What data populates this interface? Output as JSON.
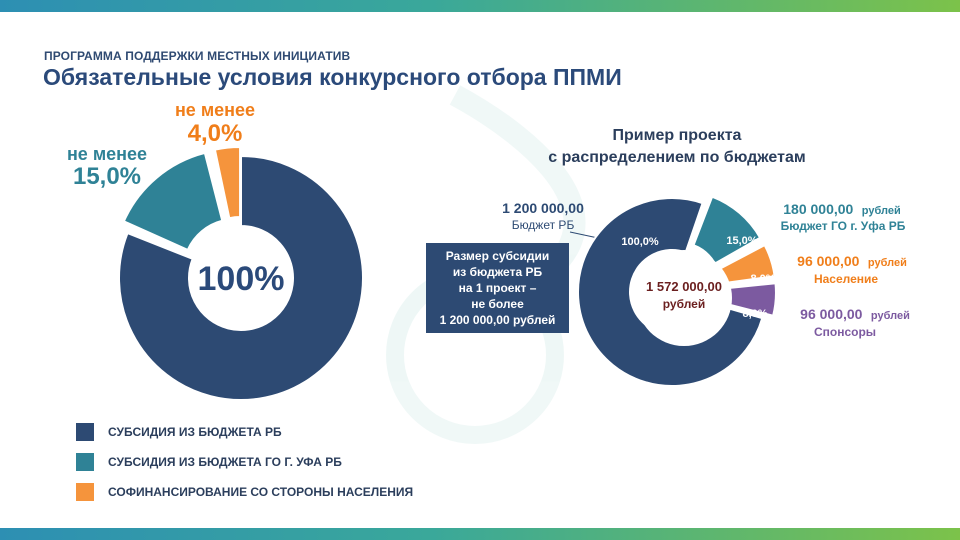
{
  "header": {
    "subtitle": "ПРОГРАММА ПОДДЕРЖКИ МЕСТНЫХ ИНИЦИАТИВ",
    "title": "Обязательные условия конкурсного отбора ППМИ"
  },
  "colors": {
    "rb": "#2d4a73",
    "go": "#2f8296",
    "population": "#f5943c",
    "sponsors": "#7c5aa0",
    "bar_gradient_start": "#2d8fb3",
    "bar_gradient_end": "#7cc24a"
  },
  "chart_data": [
    {
      "type": "pie",
      "variant": "donut",
      "center_label": "100%",
      "slices": [
        {
          "label": "СУБСИДИЯ ИЗ БЮДЖЕТА РБ",
          "value": 81.0,
          "color": "#2d4a73",
          "data_label": ""
        },
        {
          "label": "СУБСИДИЯ ИЗ БЮДЖЕТА ГО Г. УФА РБ",
          "value": 15.0,
          "color": "#2f8296",
          "data_label_prefix": "не менее",
          "data_label": "15,0%"
        },
        {
          "label": "СОФИНАНСИРОВАНИЕ СО СТОРОНЫ НАСЕЛЕНИЯ",
          "value": 4.0,
          "color": "#f5943c",
          "data_label_prefix": "не менее",
          "data_label": "4,0%"
        }
      ],
      "legend": [
        {
          "label": "СУБСИДИЯ ИЗ БЮДЖЕТА РБ",
          "color": "#2d4a73"
        },
        {
          "label": "СУБСИДИЯ ИЗ БЮДЖЕТА ГО Г. УФА РБ",
          "color": "#2f8296"
        },
        {
          "label": "СОФИНАНСИРОВАНИЕ СО СТОРОНЫ НАСЕЛЕНИЯ",
          "color": "#f5943c"
        }
      ],
      "legend_position": "bottom-left"
    },
    {
      "type": "pie",
      "variant": "donut",
      "title_line1": "Пример проекта",
      "title_line2": "с распределением по бюджетам",
      "center_value": "1 572 000,00",
      "center_unit": "рублей",
      "slices": [
        {
          "name": "Бюджет РБ",
          "amount": "1 200 000,00",
          "unit": "",
          "value": 1200000,
          "pct_label": "100,0%",
          "color": "#2d4a73"
        },
        {
          "name": "Бюджет ГО г. Уфа РБ",
          "amount": "180 000,00",
          "unit": "рублей",
          "value": 180000,
          "pct_label": "15,0%",
          "color": "#2f8296"
        },
        {
          "name": "Население",
          "amount": "96 000,00",
          "unit": "рублей",
          "value": 96000,
          "pct_label": "8,0%",
          "color": "#f5943c"
        },
        {
          "name": "Спонсоры",
          "amount": "96 000,00",
          "unit": "рублей",
          "value": 96000,
          "pct_label": "8,0%",
          "color": "#7c5aa0"
        }
      ],
      "callout": "Размер субсидии\nиз бюджета РБ\nна 1 проект –\nне более\n1 200 000,00 рублей"
    }
  ]
}
